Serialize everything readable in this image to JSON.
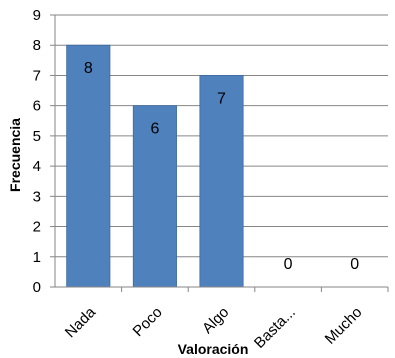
{
  "chart_data": {
    "type": "bar",
    "title": "",
    "xlabel": "Valoración",
    "ylabel": "Frecuencia",
    "categories": [
      "Nada",
      "Poco",
      "Algo",
      "Basta...",
      "Mucho"
    ],
    "values": [
      8,
      6,
      7,
      0,
      0
    ],
    "ylim": [
      0,
      9
    ],
    "yticks": [
      0,
      1,
      2,
      3,
      4,
      5,
      6,
      7,
      8,
      9
    ],
    "grid": true,
    "legend": "none",
    "data_labels": true,
    "colors": {
      "bar": "#4f81bd",
      "bar_edge": "#3b6aa0",
      "grid": "#868686",
      "axis": "#868686",
      "text": "#000000"
    }
  }
}
